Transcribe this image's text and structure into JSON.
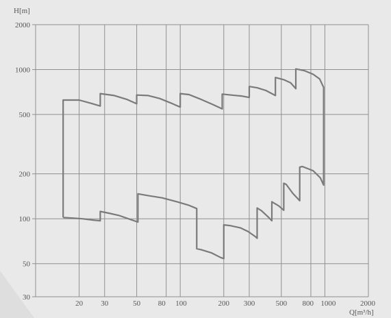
{
  "chart_data": {
    "type": "line",
    "title": "",
    "xlabel": "Q[m³/h]",
    "ylabel": "H[m]",
    "x_scale": "log",
    "y_scale": "log",
    "xlim": [
      10,
      2000
    ],
    "ylim": [
      30,
      2000
    ],
    "grid": true,
    "x_ticks": [
      20,
      30,
      50,
      80,
      100,
      200,
      300,
      500,
      800,
      1000,
      2000
    ],
    "x_tick_labels": [
      "20",
      "30",
      "50",
      "80",
      "100",
      "200",
      "300",
      "500",
      "800",
      "1000",
      "2000"
    ],
    "y_ticks": [
      30,
      50,
      100,
      200,
      500,
      1000,
      2000
    ],
    "y_tick_labels": [
      "30",
      "50",
      "100",
      "200",
      "500",
      "1000",
      "2000"
    ],
    "series": [
      {
        "values": [
          [
            15.5,
            102
          ],
          [
            15.5,
            625
          ],
          [
            20,
            625
          ],
          [
            24,
            595
          ],
          [
            28,
            570
          ],
          [
            28,
            690
          ],
          [
            35,
            670
          ],
          [
            43,
            630
          ],
          [
            50,
            590
          ],
          [
            50,
            675
          ],
          [
            60,
            670
          ],
          [
            72,
            640
          ],
          [
            85,
            600
          ],
          [
            100,
            560
          ],
          [
            100,
            690
          ],
          [
            115,
            680
          ],
          [
            140,
            630
          ],
          [
            170,
            580
          ],
          [
            195,
            545
          ],
          [
            195,
            685
          ],
          [
            225,
            675
          ],
          [
            265,
            665
          ],
          [
            300,
            650
          ],
          [
            300,
            770
          ],
          [
            340,
            755
          ],
          [
            390,
            725
          ],
          [
            455,
            670
          ],
          [
            455,
            885
          ],
          [
            520,
            855
          ],
          [
            580,
            815
          ],
          [
            630,
            745
          ],
          [
            630,
            1010
          ],
          [
            720,
            985
          ],
          [
            830,
            930
          ],
          [
            920,
            865
          ],
          [
            980,
            760
          ],
          [
            980,
            168
          ],
          [
            930,
            188
          ],
          [
            830,
            210
          ],
          [
            700,
            224
          ],
          [
            670,
            222
          ],
          [
            670,
            132
          ],
          [
            600,
            148
          ],
          [
            540,
            170
          ],
          [
            520,
            173
          ],
          [
            520,
            114
          ],
          [
            480,
            122
          ],
          [
            430,
            130
          ],
          [
            430,
            97
          ],
          [
            405,
            103
          ],
          [
            365,
            113
          ],
          [
            340,
            118
          ],
          [
            340,
            74
          ],
          [
            330,
            76
          ],
          [
            295,
            82
          ],
          [
            260,
            87
          ],
          [
            220,
            90
          ],
          [
            200,
            91
          ],
          [
            200,
            54
          ],
          [
            190,
            55
          ],
          [
            165,
            59
          ],
          [
            140,
            62
          ],
          [
            130,
            63
          ],
          [
            130,
            117
          ],
          [
            115,
            123
          ],
          [
            95,
            130
          ],
          [
            75,
            138
          ],
          [
            60,
            143
          ],
          [
            51,
            147
          ],
          [
            51,
            95
          ],
          [
            45,
            99
          ],
          [
            38,
            105
          ],
          [
            32,
            109
          ],
          [
            28,
            112
          ],
          [
            28,
            97
          ],
          [
            25,
            98
          ],
          [
            21,
            100
          ],
          [
            18,
            101
          ],
          [
            15.5,
            102
          ]
        ]
      }
    ]
  },
  "colors": {
    "background": "#e9e9e9",
    "grid": "#8f8f8f",
    "curve": "#7a7a7a",
    "text": "#555555"
  }
}
